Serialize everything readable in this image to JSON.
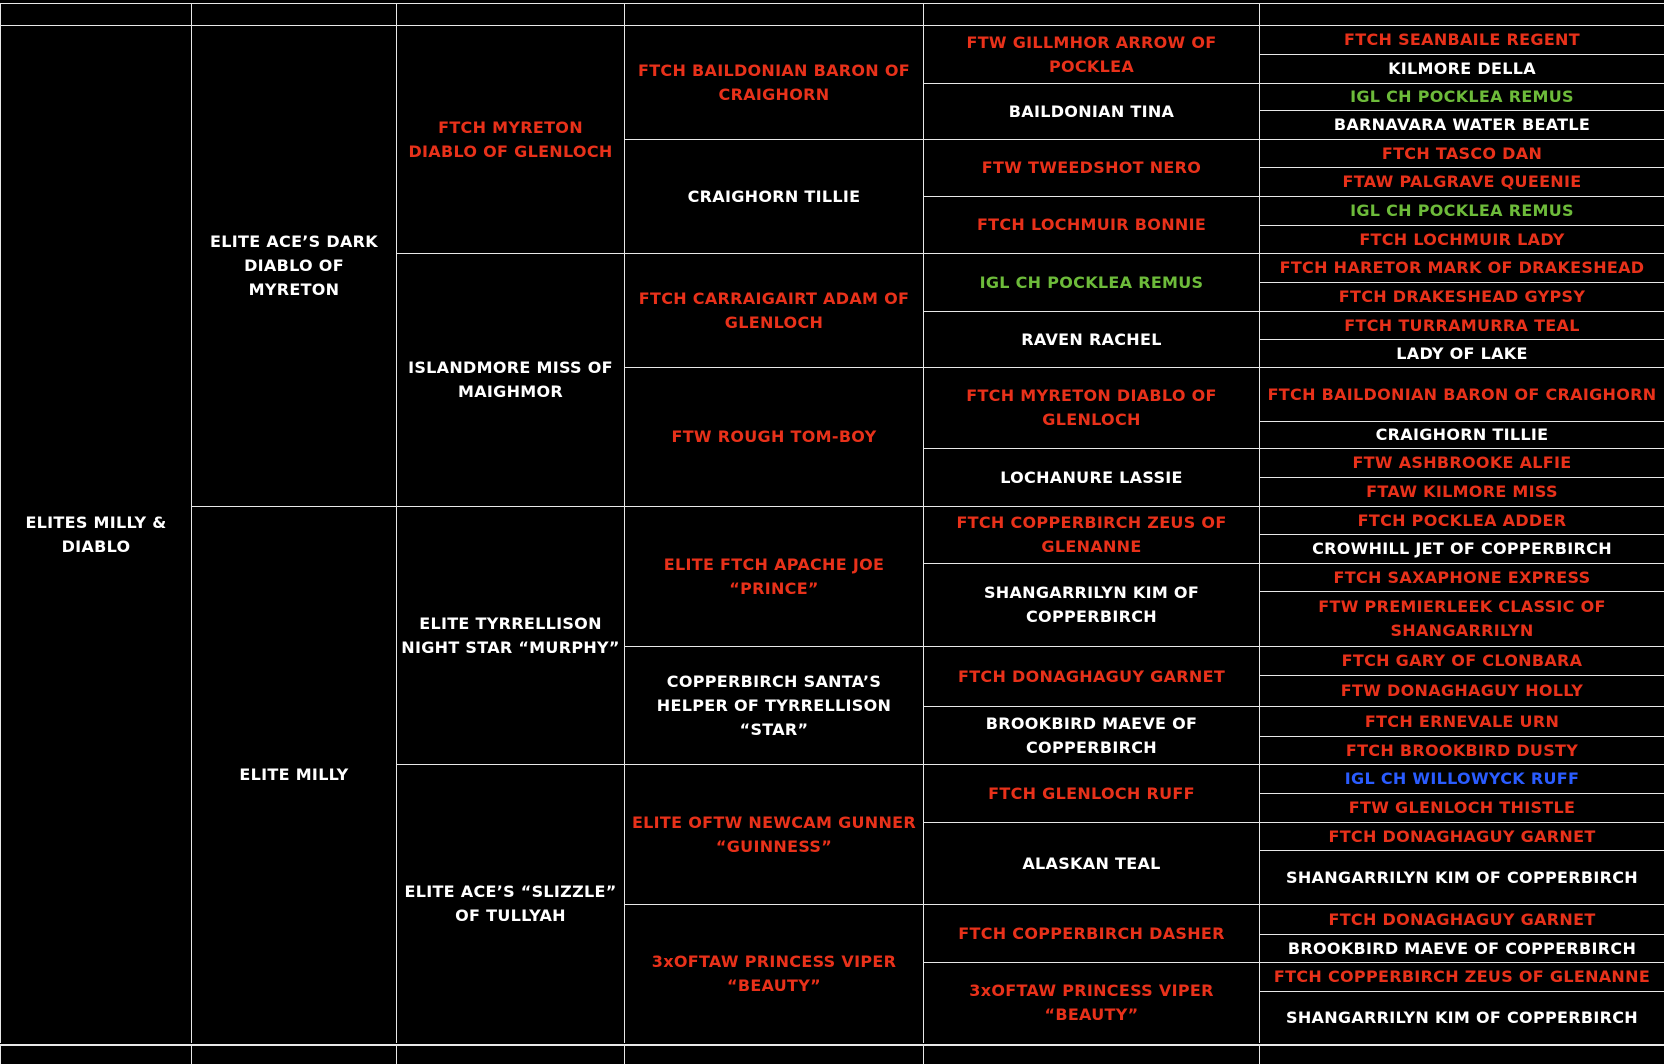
{
  "colors": {
    "red": "#e8311a",
    "green": "#6dbb3a",
    "blue": "#2a5cff",
    "white": "#ffffff",
    "background": "#000000",
    "grid": "#e8e8e8"
  },
  "pedigree": {
    "generations": [
      [
        {
          "name": "ELITES MILLY & DIABLO",
          "color": "white"
        }
      ],
      [
        {
          "name": "ELITE ACE’S DARK DIABLO OF MYRETON",
          "color": "white"
        },
        {
          "name": "ELITE MILLY",
          "color": "white"
        }
      ],
      [
        {
          "name": "FTCH MYRETON DIABLO OF GLENLOCH",
          "color": "red"
        },
        {
          "name": "ISLANDMORE MISS OF MAIGHMOR",
          "color": "white"
        },
        {
          "name": "ELITE TYRRELLISON NIGHT STAR “MURPHY”",
          "color": "white"
        },
        {
          "name": "ELITE ACE’S “SLIZZLE” OF TULLYAH",
          "color": "white"
        }
      ],
      [
        {
          "name": "FTCH BAILDONIAN BARON OF CRAIGHORN",
          "color": "red"
        },
        {
          "name": "CRAIGHORN TILLIE",
          "color": "white"
        },
        {
          "name": "FTCH CARRAIGAIRT ADAM OF GLENLOCH",
          "color": "red"
        },
        {
          "name": "FTW ROUGH TOM-BOY",
          "color": "red"
        },
        {
          "name": "ELITE FTCH APACHE JOE “PRINCE”",
          "color": "red"
        },
        {
          "name": "COPPERBIRCH SANTA’S HELPER OF TYRRELLISON “STAR”",
          "color": "white"
        },
        {
          "name": "ELITE OFTW NEWCAM GUNNER “GUINNESS”",
          "color": "red"
        },
        {
          "name": "3xOFTAW PRINCESS VIPER “BEAUTY”",
          "color": "red"
        }
      ],
      [
        {
          "name": "FTW GILLMHOR ARROW OF POCKLEA",
          "color": "red"
        },
        {
          "name": "BAILDONIAN TINA",
          "color": "white"
        },
        {
          "name": "FTW TWEEDSHOT NERO",
          "color": "red"
        },
        {
          "name": "FTCH LOCHMUIR BONNIE",
          "color": "red"
        },
        {
          "name": "IGL CH POCKLEA REMUS",
          "color": "green"
        },
        {
          "name": "RAVEN RACHEL",
          "color": "white"
        },
        {
          "name": "FTCH MYRETON DIABLO OF GLENLOCH",
          "color": "red"
        },
        {
          "name": "LOCHANURE LASSIE",
          "color": "white"
        },
        {
          "name": "FTCH COPPERBIRCH ZEUS OF GLENANNE",
          "color": "red"
        },
        {
          "name": "SHANGARRILYN KIM OF COPPERBIRCH",
          "color": "white"
        },
        {
          "name": "FTCH DONAGHAGUY GARNET",
          "color": "red"
        },
        {
          "name": "BROOKBIRD MAEVE OF COPPERBIRCH",
          "color": "white"
        },
        {
          "name": "FTCH GLENLOCH RUFF",
          "color": "red"
        },
        {
          "name": "ALASKAN TEAL",
          "color": "white"
        },
        {
          "name": "FTCH COPPERBIRCH DASHER",
          "color": "red"
        },
        {
          "name": "3xOFTAW PRINCESS VIPER “BEAUTY”",
          "color": "red"
        }
      ],
      [
        {
          "name": "FTCH SEANBAILE REGENT",
          "color": "red"
        },
        {
          "name": "KILMORE DELLA",
          "color": "white"
        },
        {
          "name": "IGL CH POCKLEA REMUS",
          "color": "green"
        },
        {
          "name": "BARNAVARA WATER BEATLE",
          "color": "white"
        },
        {
          "name": "FTCH TASCO DAN",
          "color": "red"
        },
        {
          "name": "FTAW PALGRAVE QUEENIE",
          "color": "red"
        },
        {
          "name": "IGL CH POCKLEA REMUS",
          "color": "green"
        },
        {
          "name": "FTCH LOCHMUIR LADY",
          "color": "red"
        },
        {
          "name": "FTCH HARETOR MARK OF DRAKESHEAD",
          "color": "red"
        },
        {
          "name": "FTCH DRAKESHEAD GYPSY",
          "color": "red"
        },
        {
          "name": "FTCH TURRAMURRA TEAL",
          "color": "red"
        },
        {
          "name": "LADY OF LAKE",
          "color": "white"
        },
        {
          "name": "FTCH BAILDONIAN BARON OF CRAIGHORN",
          "color": "red"
        },
        {
          "name": "CRAIGHORN TILLIE",
          "color": "white"
        },
        {
          "name": "FTW ASHBROOKE ALFIE",
          "color": "red"
        },
        {
          "name": "FTAW KILMORE MISS",
          "color": "red"
        },
        {
          "name": "FTCH POCKLEA ADDER",
          "color": "red"
        },
        {
          "name": "CROWHILL JET OF COPPERBIRCH",
          "color": "white"
        },
        {
          "name": "FTCH SAXAPHONE EXPRESS",
          "color": "red"
        },
        {
          "name": "FTW PREMIERLEEK CLASSIC OF SHANGARRILYN",
          "color": "red"
        },
        {
          "name": "FTCH GARY OF CLONBARA",
          "color": "red"
        },
        {
          "name": "FTW DONAGHAGUY HOLLY",
          "color": "red"
        },
        {
          "name": "FTCH ERNEVALE URN",
          "color": "red"
        },
        {
          "name": "FTCH BROOKBIRD DUSTY",
          "color": "red"
        },
        {
          "name": "IGL CH WILLOWYCK RUFF",
          "color": "blue"
        },
        {
          "name": "FTW GLENLOCH THISTLE",
          "color": "red"
        },
        {
          "name": "FTCH DONAGHAGUY GARNET",
          "color": "red"
        },
        {
          "name": "SHANGARRILYN KIM OF COPPERBIRCH",
          "color": "white"
        },
        {
          "name": "FTCH DONAGHAGUY GARNET",
          "color": "red"
        },
        {
          "name": "BROOKBIRD MAEVE OF COPPERBIRCH",
          "color": "white"
        },
        {
          "name": "FTCH COPPERBIRCH ZEUS OF GLENANNE",
          "color": "red"
        },
        {
          "name": "SHANGARRILYN KIM OF COPPERBIRCH",
          "color": "white"
        }
      ]
    ]
  }
}
